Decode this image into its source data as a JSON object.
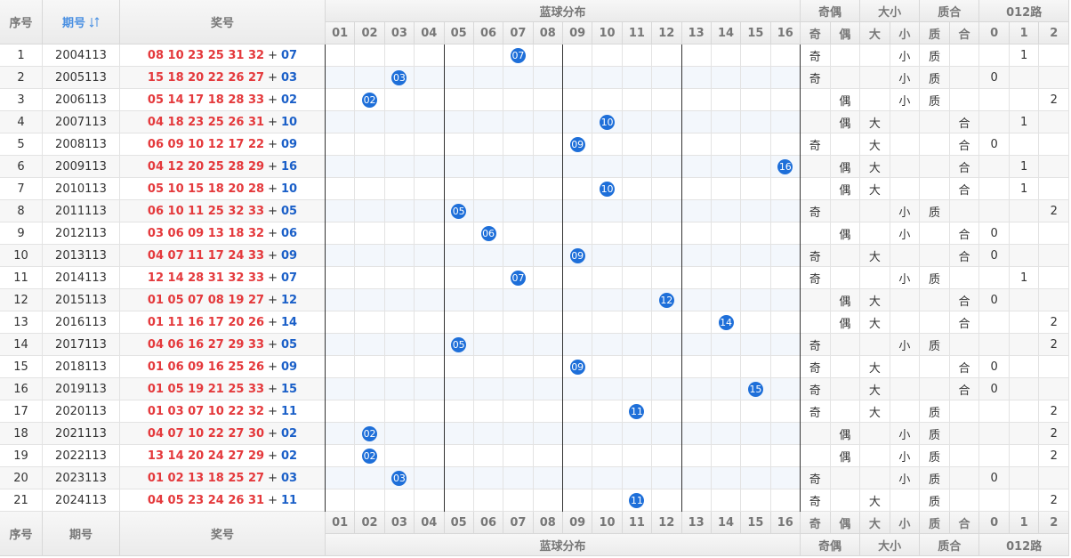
{
  "header": {
    "seq": "序号",
    "period": "期号",
    "prize": "奖号",
    "blue_dist": "蓝球分布",
    "odd_even": "奇偶",
    "size": "大小",
    "prime": "质合",
    "road": "012路",
    "blue_columns": [
      "01",
      "02",
      "03",
      "04",
      "05",
      "06",
      "07",
      "08",
      "09",
      "10",
      "11",
      "12",
      "13",
      "14",
      "15",
      "16"
    ],
    "odd_even_columns": [
      "奇",
      "偶"
    ],
    "size_columns": [
      "大",
      "小"
    ],
    "prime_columns": [
      "质",
      "合"
    ],
    "road_columns": [
      0,
      1,
      2
    ]
  },
  "separator": "+",
  "rows": [
    {
      "seq": 1,
      "period": "2004113",
      "red": "08 10 23 25 31 32",
      "blue": "07",
      "odd_even": "奇",
      "size": "小",
      "prime": "质",
      "road": 1
    },
    {
      "seq": 2,
      "period": "2005113",
      "red": "15 18 20 22 26 27",
      "blue": "03",
      "odd_even": "奇",
      "size": "小",
      "prime": "质",
      "road": 0
    },
    {
      "seq": 3,
      "period": "2006113",
      "red": "05 14 17 18 28 33",
      "blue": "02",
      "odd_even": "偶",
      "size": "小",
      "prime": "质",
      "road": 2
    },
    {
      "seq": 4,
      "period": "2007113",
      "red": "04 18 23 25 26 31",
      "blue": "10",
      "odd_even": "偶",
      "size": "大",
      "prime": "合",
      "road": 1
    },
    {
      "seq": 5,
      "period": "2008113",
      "red": "06 09 10 12 17 22",
      "blue": "09",
      "odd_even": "奇",
      "size": "大",
      "prime": "合",
      "road": 0
    },
    {
      "seq": 6,
      "period": "2009113",
      "red": "04 12 20 25 28 29",
      "blue": "16",
      "odd_even": "偶",
      "size": "大",
      "prime": "合",
      "road": 1
    },
    {
      "seq": 7,
      "period": "2010113",
      "red": "05 10 15 18 20 28",
      "blue": "10",
      "odd_even": "偶",
      "size": "大",
      "prime": "合",
      "road": 1
    },
    {
      "seq": 8,
      "period": "2011113",
      "red": "06 10 11 25 32 33",
      "blue": "05",
      "odd_even": "奇",
      "size": "小",
      "prime": "质",
      "road": 2
    },
    {
      "seq": 9,
      "period": "2012113",
      "red": "03 06 09 13 18 32",
      "blue": "06",
      "odd_even": "偶",
      "size": "小",
      "prime": "合",
      "road": 0
    },
    {
      "seq": 10,
      "period": "2013113",
      "red": "04 07 11 17 24 33",
      "blue": "09",
      "odd_even": "奇",
      "size": "大",
      "prime": "合",
      "road": 0
    },
    {
      "seq": 11,
      "period": "2014113",
      "red": "12 14 28 31 32 33",
      "blue": "07",
      "odd_even": "奇",
      "size": "小",
      "prime": "质",
      "road": 1
    },
    {
      "seq": 12,
      "period": "2015113",
      "red": "01 05 07 08 19 27",
      "blue": "12",
      "odd_even": "偶",
      "size": "大",
      "prime": "合",
      "road": 0
    },
    {
      "seq": 13,
      "period": "2016113",
      "red": "01 11 16 17 20 26",
      "blue": "14",
      "odd_even": "偶",
      "size": "大",
      "prime": "合",
      "road": 2
    },
    {
      "seq": 14,
      "period": "2017113",
      "red": "04 06 16 27 29 33",
      "blue": "05",
      "odd_even": "奇",
      "size": "小",
      "prime": "质",
      "road": 2
    },
    {
      "seq": 15,
      "period": "2018113",
      "red": "01 06 09 16 25 26",
      "blue": "09",
      "odd_even": "奇",
      "size": "大",
      "prime": "合",
      "road": 0
    },
    {
      "seq": 16,
      "period": "2019113",
      "red": "01 05 19 21 25 33",
      "blue": "15",
      "odd_even": "奇",
      "size": "大",
      "prime": "合",
      "road": 0
    },
    {
      "seq": 17,
      "period": "2020113",
      "red": "01 03 07 10 22 32",
      "blue": "11",
      "odd_even": "奇",
      "size": "大",
      "prime": "质",
      "road": 2
    },
    {
      "seq": 18,
      "period": "2021113",
      "red": "04 07 10 22 27 30",
      "blue": "02",
      "odd_even": "偶",
      "size": "小",
      "prime": "质",
      "road": 2
    },
    {
      "seq": 19,
      "period": "2022113",
      "red": "13 14 20 24 27 29",
      "blue": "02",
      "odd_even": "偶",
      "size": "小",
      "prime": "质",
      "road": 2
    },
    {
      "seq": 20,
      "period": "2023113",
      "red": "01 02 13 18 25 27",
      "blue": "03",
      "odd_even": "奇",
      "size": "小",
      "prime": "质",
      "road": 0
    },
    {
      "seq": 21,
      "period": "2024113",
      "red": "04 05 23 24 26 31",
      "blue": "11",
      "odd_even": "奇",
      "size": "大",
      "prime": "质",
      "road": 2
    }
  ]
}
